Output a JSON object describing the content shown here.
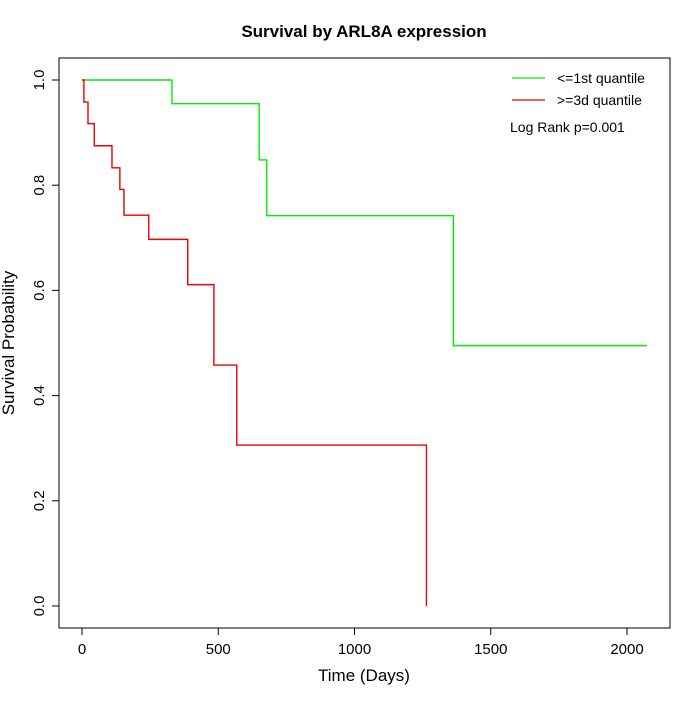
{
  "chart_data": {
    "type": "line",
    "title": "Survival by ARL8A expression",
    "xlabel": "Time (Days)",
    "ylabel": "Survival Probability",
    "xlim": [
      0,
      2100
    ],
    "ylim": [
      0,
      1
    ],
    "xticks": [
      0,
      500,
      1000,
      1500,
      2000
    ],
    "yticks": [
      0.0,
      0.2,
      0.4,
      0.6,
      0.8,
      1.0
    ],
    "ytick_labels": [
      "0.0",
      "0.2",
      "0.4",
      "0.6",
      "0.8",
      "1.0"
    ],
    "legend_position": "top-right",
    "annotation": "Log Rank p=0.001",
    "series": [
      {
        "name": "<=1st quantile",
        "color": "#00ee00",
        "step": true,
        "x": [
          0,
          330,
          650,
          678,
          1363,
          2073
        ],
        "y": [
          1.0,
          0.955,
          0.848,
          0.742,
          0.495,
          0.495
        ]
      },
      {
        "name": ">=3d quantile",
        "color": "#ee0000",
        "step": true,
        "x": [
          0,
          7,
          22,
          45,
          110,
          139,
          154,
          245,
          388,
          484,
          568,
          1264
        ],
        "y": [
          1.0,
          0.958,
          0.917,
          0.875,
          0.833,
          0.792,
          0.743,
          0.697,
          0.611,
          0.458,
          0.306,
          0.0
        ]
      }
    ]
  }
}
